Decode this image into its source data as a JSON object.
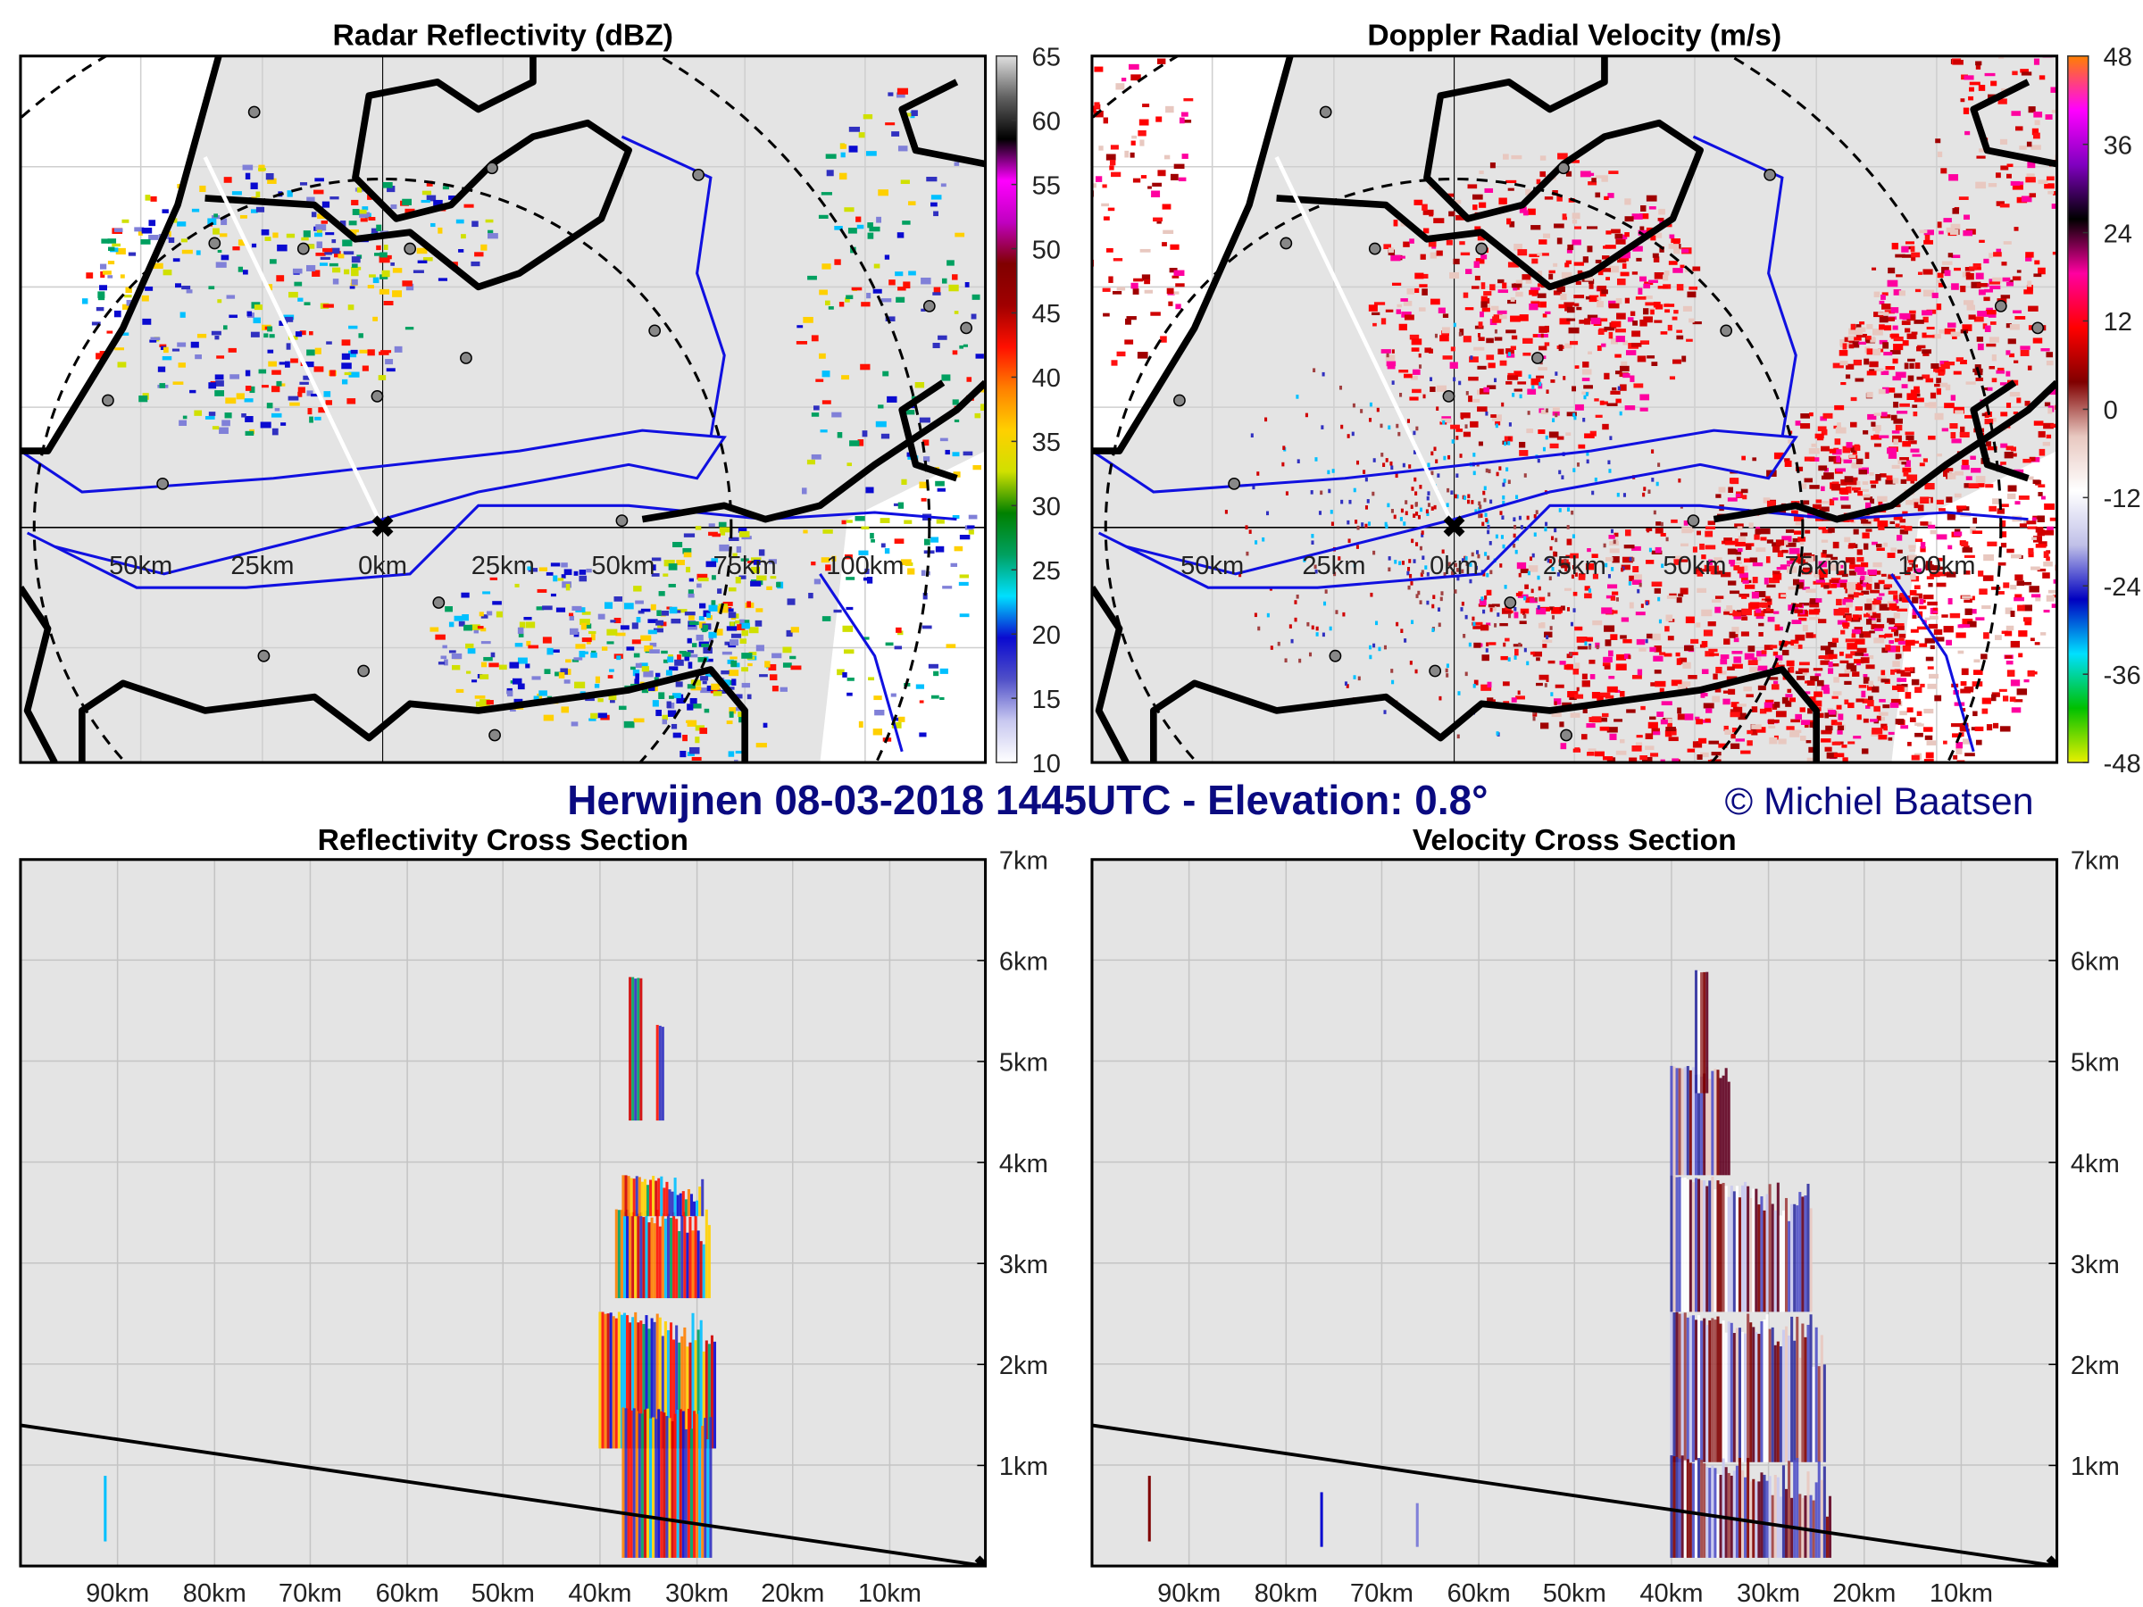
{
  "figure": {
    "main_title": "Herwijnen 08-03-2018 1445UTC - Elevation: 0.8°",
    "copyright": "© Michiel Baatsen"
  },
  "panels": {
    "reflectivity_map": {
      "title": "Radar Reflectivity (dBZ)",
      "range_labels": [
        "50km",
        "25km",
        "0km",
        "25km",
        "50km",
        "75km",
        "100km"
      ],
      "colorbar": {
        "ticks": [
          "65",
          "60",
          "55",
          "50",
          "45",
          "40",
          "35",
          "30",
          "25",
          "20",
          "15",
          "10"
        ],
        "range": [
          10,
          65
        ],
        "colors": [
          "#ffffff",
          "#c8c8f0",
          "#5050c8",
          "#0a0ad0",
          "#00e0ff",
          "#00a060",
          "#008000",
          "#d0e000",
          "#ffd000",
          "#ff8000",
          "#ff1000",
          "#a00000",
          "#800000",
          "#c000c0",
          "#ff00ff",
          "#000000",
          "#606060",
          "#e0e0e0"
        ]
      }
    },
    "velocity_map": {
      "title": "Doppler Radial Velocity (m/s)",
      "range_labels": [
        "50km",
        "25km",
        "0km",
        "25km",
        "50km",
        "75km",
        "100km"
      ],
      "colorbar": {
        "ticks": [
          "48",
          "36",
          "24",
          "12",
          "0",
          "-12",
          "-24",
          "-36",
          "-48"
        ],
        "range": [
          -48,
          48
        ],
        "colors": [
          "#e8f000",
          "#00c000",
          "#00e0ff",
          "#0000c0",
          "#c0c0e8",
          "#ffffff",
          "#e8c8c0",
          "#800000",
          "#ff0000",
          "#ff00a0",
          "#000000",
          "#8000c0",
          "#ff00ff",
          "#ff8000"
        ]
      }
    },
    "reflectivity_xsection": {
      "title": "Reflectivity Cross Section",
      "height_labels": [
        "7km",
        "6km",
        "5km",
        "4km",
        "3km",
        "2km",
        "1km"
      ],
      "distance_labels": [
        "90km",
        "80km",
        "70km",
        "60km",
        "50km",
        "40km",
        "30km",
        "20km",
        "10km"
      ]
    },
    "velocity_xsection": {
      "title": "Velocity Cross Section",
      "height_labels": [
        "7km",
        "6km",
        "5km",
        "4km",
        "3km",
        "2km",
        "1km"
      ],
      "distance_labels": [
        "90km",
        "80km",
        "70km",
        "60km",
        "50km",
        "40km",
        "30km",
        "20km",
        "10km"
      ]
    }
  },
  "colors": {
    "panel_background": "#e4e4e4",
    "title_blue": "#0a0a80",
    "river_blue": "#1010e0"
  }
}
